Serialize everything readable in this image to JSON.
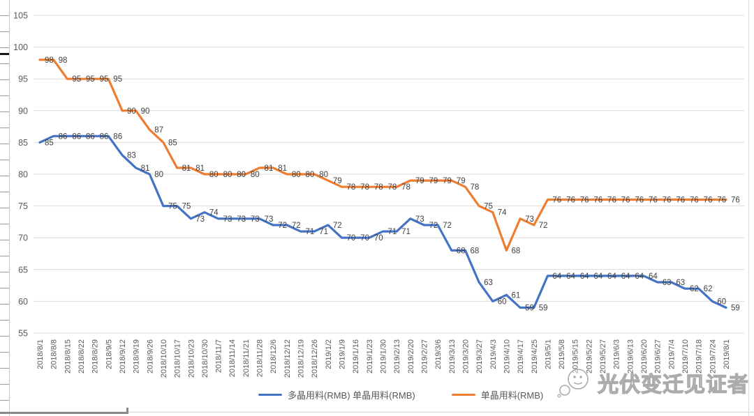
{
  "chart_data": {
    "type": "line",
    "title": "",
    "xlabel": "",
    "ylabel": "",
    "ylim": [
      55,
      105
    ],
    "yticks": [
      105,
      100,
      95,
      90,
      85,
      80,
      75,
      70,
      65,
      60,
      55
    ],
    "grid": true,
    "legend_position": "bottom",
    "data_labels": true,
    "categories": [
      "2018/8/1",
      "2018/8/8",
      "2018/8/15",
      "2018/8/22",
      "2018/8/29",
      "2018/9/5",
      "2018/9/12",
      "2018/9/19",
      "2018/9/26",
      "2018/10/10",
      "2018/10/17",
      "2018/10/23",
      "2018/10/30",
      "2018/11/7",
      "2018/11/14",
      "2018/11/21",
      "2018/11/28",
      "2018/12/6",
      "2018/12/12",
      "2018/12/19",
      "2018/12/26",
      "2019/1/2",
      "2019/1/9",
      "2019/1/16",
      "2019/1/23",
      "2019/1/30",
      "2019/2/13",
      "2019/2/20",
      "2019/2/27",
      "2019/3/6",
      "2019/3/13",
      "2019/3/20",
      "2019/3/27",
      "2019/4/3",
      "2019/4/10",
      "2019/4/17",
      "2019/4/25",
      "2019/5/1",
      "2019/5/8",
      "2019/5/15",
      "2019/5/22",
      "2019/5/27",
      "2019/6/3",
      "2019/6/13",
      "2019/6/20",
      "2019/6/27",
      "2019/7/4",
      "2019/7/10",
      "2019/7/18",
      "2019/7/24",
      "2019/8/1"
    ],
    "series": [
      {
        "name": "多晶用料(RMB) 单晶用料(RMB)",
        "color": "#4472C4",
        "values": [
          85,
          86,
          86,
          86,
          86,
          86,
          83,
          81,
          80,
          75,
          75,
          73,
          74,
          73,
          73,
          73,
          73,
          72,
          72,
          71,
          71,
          72,
          70,
          70,
          70,
          71,
          71,
          73,
          72,
          72,
          68,
          68,
          63,
          60,
          61,
          59,
          59,
          64,
          64,
          64,
          64,
          64,
          64,
          64,
          64,
          63,
          63,
          62,
          62,
          60,
          59
        ]
      },
      {
        "name": "单晶用料(RMB)",
        "color": "#ED7D31",
        "values": [
          98,
          98,
          95,
          95,
          95,
          95,
          90,
          90,
          87,
          85,
          81,
          81,
          80,
          80,
          80,
          80,
          81,
          81,
          80,
          80,
          80,
          79,
          78,
          78,
          78,
          78,
          78,
          79,
          79,
          79,
          79,
          78,
          75,
          74,
          68,
          73,
          72,
          76,
          76,
          76,
          76,
          76,
          76,
          76,
          76,
          76,
          76,
          76,
          76,
          76,
          76
        ]
      }
    ]
  },
  "watermark": {
    "text": "光伏变迁见证者"
  },
  "colors": {
    "grid": "#dcdcdc",
    "axis_text": "#595959",
    "label_text": "#3f3f3f",
    "watermark": "#ababab"
  }
}
